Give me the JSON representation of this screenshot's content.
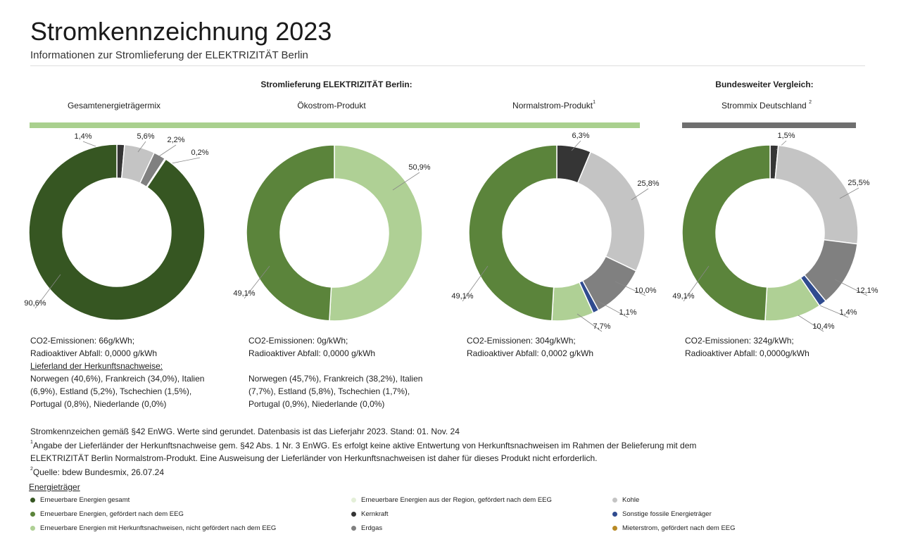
{
  "title": "Stromkennzeichnung 2023",
  "subtitle": "Informationen zur Stromlieferung der ELEKTRIZITÄT Berlin",
  "group_headers": {
    "supply": "Stromlieferung ELEKTRIZITÄT Berlin:",
    "compare": "Bundesweiter Vergleich:"
  },
  "columns": [
    {
      "label": "Gesamtenergieträgermix",
      "sup": ""
    },
    {
      "label": "Ökostrom-Produkt",
      "sup": ""
    },
    {
      "label": "Normalstrom-Produkt",
      "sup": "1"
    },
    {
      "label": "Strommix Deutschland ",
      "sup": "2"
    }
  ],
  "colors": {
    "erneuerbar_gesamt": "#365622",
    "eeg": "#5b843b",
    "hkn": "#afd095",
    "kohle": "#c4c4c4",
    "kernkraft": "#353535",
    "erdgas": "#808080",
    "sonstige": "#2f4b8f",
    "region": "#e4efd8",
    "mieterstrom": "#b88a25",
    "band_supply": "#a9d08e",
    "band_compare": "#6f6f6f"
  },
  "chart_data": [
    {
      "type": "pie",
      "title": "Gesamtenergieträgermix",
      "slices": [
        {
          "name": "Kernkraft",
          "value": 1.4,
          "label": "1,4%"
        },
        {
          "name": "Kohle",
          "value": 5.6,
          "label": "5,6%"
        },
        {
          "name": "Erdgas",
          "value": 2.2,
          "label": "2,2%"
        },
        {
          "name": "Sonstige fossile Energieträger",
          "value": 0.2,
          "label": "0,2%"
        },
        {
          "name": "Erneuerbare Energien gesamt",
          "value": 90.6,
          "label": "90,6%"
        }
      ]
    },
    {
      "type": "pie",
      "title": "Ökostrom-Produkt",
      "slices": [
        {
          "name": "Erneuerbare Energien mit Herkunftsnachweisen, nicht gefördert nach dem EEG",
          "value": 50.9,
          "label": "50,9%"
        },
        {
          "name": "Erneuerbare Energien, gefördert nach dem EEG",
          "value": 49.1,
          "label": "49,1%"
        }
      ]
    },
    {
      "type": "pie",
      "title": "Normalstrom-Produkt",
      "slices": [
        {
          "name": "Kernkraft",
          "value": 6.3,
          "label": "6,3%"
        },
        {
          "name": "Kohle",
          "value": 25.8,
          "label": "25,8%"
        },
        {
          "name": "Erdgas",
          "value": 10.0,
          "label": "10,0%"
        },
        {
          "name": "Sonstige fossile Energieträger",
          "value": 1.1,
          "label": "1,1%"
        },
        {
          "name": "Erneuerbare Energien mit Herkunftsnachweisen, nicht gefördert nach dem EEG",
          "value": 7.7,
          "label": "7,7%"
        },
        {
          "name": "Erneuerbare Energien, gefördert nach dem EEG",
          "value": 49.1,
          "label": "49,1%"
        }
      ]
    },
    {
      "type": "pie",
      "title": "Strommix Deutschland",
      "slices": [
        {
          "name": "Kernkraft",
          "value": 1.5,
          "label": "1,5%"
        },
        {
          "name": "Kohle",
          "value": 25.5,
          "label": "25,5%"
        },
        {
          "name": "Erdgas",
          "value": 12.1,
          "label": "12,1%"
        },
        {
          "name": "Sonstige fossile Energieträger",
          "value": 1.4,
          "label": "1,4%"
        },
        {
          "name": "Erneuerbare Energien mit Herkunftsnachweisen, nicht gefördert nach dem EEG",
          "value": 10.4,
          "label": "10,4%"
        },
        {
          "name": "Erneuerbare Energien, gefördert nach dem EEG",
          "value": 49.1,
          "label": "49,1%"
        }
      ]
    }
  ],
  "info": [
    {
      "co2": "CO2-Emissionen: 66g/kWh;",
      "waste": "Radioaktiver Abfall: 0,0000 g/kWh",
      "origin_heading": "Lieferland der Herkunftsnachweise:",
      "origin_lines": [
        "Norwegen (40,6%), Frankreich (34,0%), Italien",
        "(6,9%), Estland (5,2%), Tschechien (1,5%),",
        "Portugal (0,8%), Niederlande (0,0%)"
      ]
    },
    {
      "co2": "CO2-Emissionen: 0g/kWh;",
      "waste": "Radioaktiver Abfall: 0,0000 g/kWh",
      "origin_lines": [
        "Norwegen (45,7%), Frankreich (38,2%), Italien",
        "(7,7%), Estland (5,8%), Tschechien (1,7%),",
        "Portugal (0,9%), Niederlande (0,0%)"
      ]
    },
    {
      "co2": "CO2-Emissionen: 304g/kWh;",
      "waste": "Radioaktiver Abfall: 0,0002 g/kWh"
    },
    {
      "co2": "CO2-Emissionen: 324g/kWh;",
      "waste": "Radioaktiver Abfall: 0,0000g/kWh"
    }
  ],
  "notes": {
    "line1": "Stromkennzeichen gemäß §42 EnWG. Werte sind gerundet. Datenbasis ist das Lieferjahr 2023. Stand: 01. Nov. 24",
    "fn1_sup": "1",
    "fn1_a": "Angabe der Lieferländer der Herkunftsnachweise gem. §42 Abs. 1 Nr. 3 EnWG. Es erfolgt keine aktive Entwertung von Herkunftsnachweisen im Rahmen der Belieferung mit dem",
    "fn1_b": "ELEKTRIZITÄT Berlin Normalstrom-Produkt. Eine Ausweisung der Lieferländer von Herkunftsnachweisen ist daher für dieses Produkt nicht erforderlich.",
    "fn2_sup": "2",
    "fn2": "Quelle: bdew Bundesmix, 26.07.24"
  },
  "legend": {
    "title": "Energieträger",
    "items": [
      {
        "label": "Erneuerbare Energien gesamt",
        "color": "#365622"
      },
      {
        "label": "Erneuerbare Energien, gefördert nach dem EEG",
        "color": "#5b843b"
      },
      {
        "label": "Erneuerbare Energien mit Herkunftsnachweisen, nicht gefördert nach dem EEG",
        "color": "#afd095"
      },
      {
        "label": "Erneuerbare Energien aus der Region, gefördert nach dem EEG",
        "color": "#e4efd8"
      },
      {
        "label": "Kernkraft",
        "color": "#353535"
      },
      {
        "label": "Erdgas",
        "color": "#808080"
      },
      {
        "label": "Kohle",
        "color": "#c4c4c4"
      },
      {
        "label": "Sonstige fossile Energieträger",
        "color": "#2f4b8f"
      },
      {
        "label": "Mieterstrom, gefördert nach dem EEG",
        "color": "#b88a25"
      }
    ]
  }
}
